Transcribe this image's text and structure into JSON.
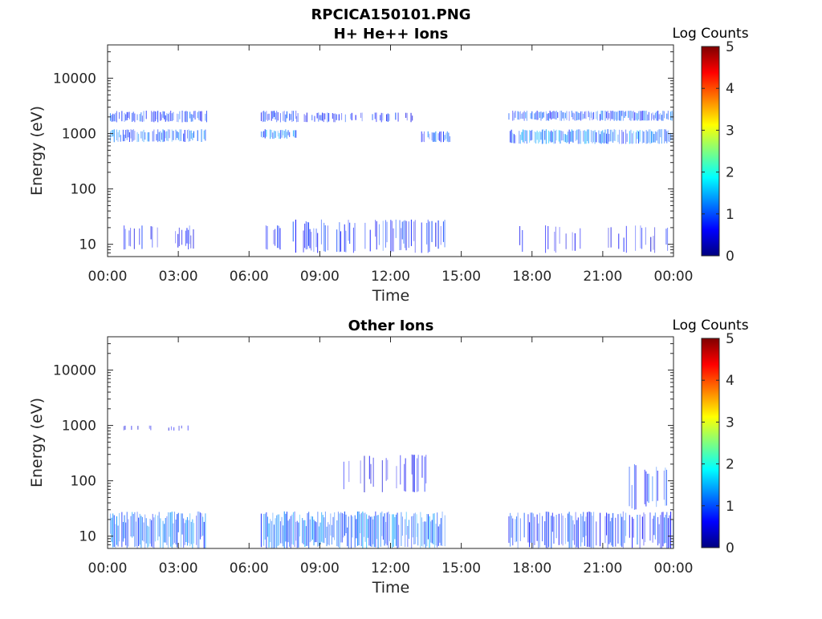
{
  "figure": {
    "title": "RPCICA150101.PNG"
  },
  "colorbar": {
    "label": "Log Counts",
    "ticks": [
      "0",
      "1",
      "2",
      "3",
      "4",
      "5"
    ],
    "range": [
      0,
      5
    ],
    "colors": [
      "#00007f",
      "#0000ff",
      "#007fff",
      "#00ffff",
      "#7fff7f",
      "#ffff00",
      "#ff7f00",
      "#ff0000",
      "#7f0000"
    ]
  },
  "chart_data": [
    {
      "type": "heatmap",
      "title": "H+ He++ Ions",
      "xlabel": "Time",
      "ylabel": "Energy (eV)",
      "yscale": "log",
      "ylim": [
        6,
        40000
      ],
      "xlim": [
        "00:00",
        "24:00"
      ],
      "x_ticks": [
        "00:00",
        "03:00",
        "06:00",
        "09:00",
        "12:00",
        "15:00",
        "18:00",
        "21:00",
        "00:00"
      ],
      "y_ticks": [
        "10",
        "100",
        "1000",
        "10000"
      ],
      "bands": [
        {
          "t_start": 0.1,
          "t_end": 4.2,
          "e_low": 1600,
          "e_high": 2600,
          "level": 0.9,
          "density": 0.75
        },
        {
          "t_start": 0.1,
          "t_end": 4.2,
          "e_low": 700,
          "e_high": 1200,
          "level": 1.1,
          "density": 0.8
        },
        {
          "t_start": 0.3,
          "t_end": 3.7,
          "e_low": 8,
          "e_high": 22,
          "level": 0.7,
          "density": 0.35
        },
        {
          "t_start": 6.5,
          "t_end": 8.0,
          "e_low": 1600,
          "e_high": 2600,
          "level": 0.9,
          "density": 0.7
        },
        {
          "t_start": 6.5,
          "t_end": 8.0,
          "e_low": 800,
          "e_high": 1200,
          "level": 1.2,
          "density": 0.8
        },
        {
          "t_start": 8.0,
          "t_end": 10.8,
          "e_low": 1600,
          "e_high": 2400,
          "level": 0.8,
          "density": 0.5
        },
        {
          "t_start": 11.0,
          "t_end": 13.0,
          "e_low": 1600,
          "e_high": 2400,
          "level": 0.8,
          "density": 0.35
        },
        {
          "t_start": 6.7,
          "t_end": 7.3,
          "e_low": 8,
          "e_high": 22,
          "level": 0.7,
          "density": 0.4
        },
        {
          "t_start": 7.8,
          "t_end": 14.3,
          "e_low": 7,
          "e_high": 28,
          "level": 0.8,
          "density": 0.5
        },
        {
          "t_start": 13.3,
          "t_end": 14.5,
          "e_low": 700,
          "e_high": 1100,
          "level": 1.0,
          "density": 0.6
        },
        {
          "t_start": 17.0,
          "t_end": 24.0,
          "e_low": 1700,
          "e_high": 2600,
          "level": 1.0,
          "density": 0.85
        },
        {
          "t_start": 17.0,
          "t_end": 24.0,
          "e_low": 650,
          "e_high": 1200,
          "level": 1.2,
          "density": 0.9
        },
        {
          "t_start": 17.3,
          "t_end": 24.0,
          "e_low": 7,
          "e_high": 22,
          "level": 0.6,
          "density": 0.2
        }
      ]
    },
    {
      "type": "heatmap",
      "title": "Other Ions",
      "xlabel": "Time",
      "ylabel": "Energy (eV)",
      "yscale": "log",
      "ylim": [
        6,
        40000
      ],
      "xlim": [
        "00:00",
        "24:00"
      ],
      "x_ticks": [
        "00:00",
        "03:00",
        "06:00",
        "09:00",
        "12:00",
        "15:00",
        "18:00",
        "21:00",
        "00:00"
      ],
      "y_ticks": [
        "10",
        "100",
        "1000",
        "10000"
      ],
      "bands": [
        {
          "t_start": 0.1,
          "t_end": 4.2,
          "e_low": 6,
          "e_high": 28,
          "level": 1.1,
          "density": 0.9
        },
        {
          "t_start": 0.4,
          "t_end": 3.5,
          "e_low": 800,
          "e_high": 1000,
          "level": 0.5,
          "density": 0.2
        },
        {
          "t_start": 6.5,
          "t_end": 14.3,
          "e_low": 6,
          "e_high": 28,
          "level": 1.2,
          "density": 0.95
        },
        {
          "t_start": 10.0,
          "t_end": 13.5,
          "e_low": 60,
          "e_high": 300,
          "level": 0.6,
          "density": 0.3
        },
        {
          "t_start": 17.0,
          "t_end": 24.0,
          "e_low": 6,
          "e_high": 28,
          "level": 0.9,
          "density": 0.7
        },
        {
          "t_start": 22.0,
          "t_end": 23.7,
          "e_low": 30,
          "e_high": 200,
          "level": 0.9,
          "density": 0.5
        }
      ]
    }
  ]
}
